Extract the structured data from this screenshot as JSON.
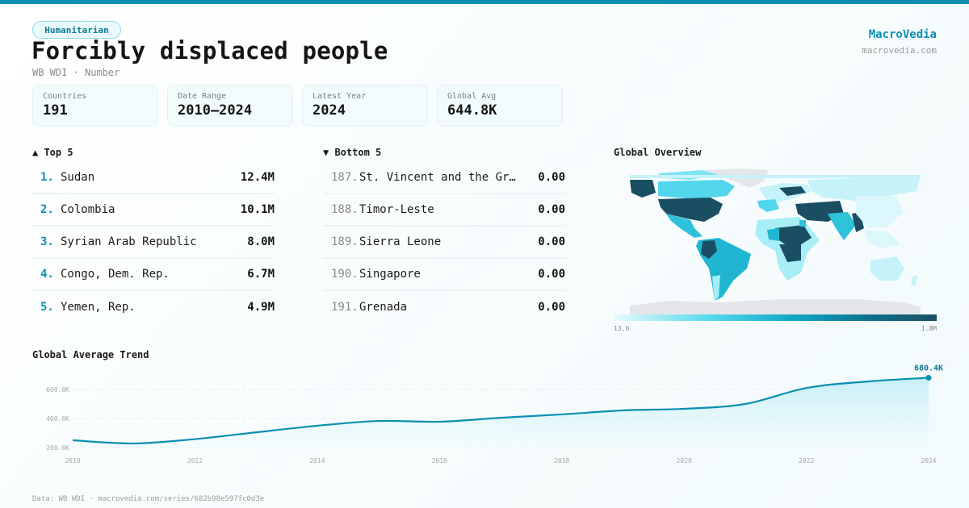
{
  "header": {
    "category_badge": "Humanitarian",
    "title": "Forcibly displaced people",
    "subtitle": "WB WDI · Number",
    "brand": "MacroVedia",
    "brand_url": "macrovedia.com",
    "accent_color": "#0b8fb0"
  },
  "stats": [
    {
      "label": "Countries",
      "value": "191"
    },
    {
      "label": "Date Range",
      "value": "2010–2024"
    },
    {
      "label": "Latest Year",
      "value": "2024"
    },
    {
      "label": "Global Avg",
      "value": "644.8K"
    }
  ],
  "top5": {
    "title": "▲ Top 5",
    "items": [
      {
        "rank": "1.",
        "name": "Sudan",
        "value": "12.4M"
      },
      {
        "rank": "2.",
        "name": "Colombia",
        "value": "10.1M"
      },
      {
        "rank": "3.",
        "name": "Syrian Arab Republic",
        "value": "8.0M"
      },
      {
        "rank": "4.",
        "name": "Congo, Dem. Rep.",
        "value": "6.7M"
      },
      {
        "rank": "5.",
        "name": "Yemen, Rep.",
        "value": "4.9M"
      }
    ]
  },
  "bottom5": {
    "title": "▼ Bottom 5",
    "items": [
      {
        "rank": "187.",
        "name": "St. Vincent and the Gr…",
        "value": "0.00"
      },
      {
        "rank": "188.",
        "name": "Timor-Leste",
        "value": "0.00"
      },
      {
        "rank": "189.",
        "name": "Sierra Leone",
        "value": "0.00"
      },
      {
        "rank": "190.",
        "name": "Singapore",
        "value": "0.00"
      },
      {
        "rank": "191.",
        "name": "Grenada",
        "value": "0.00"
      }
    ]
  },
  "map": {
    "title": "Global Overview",
    "legend_min": "13.0",
    "legend_max": "1.8M",
    "scale_colors": [
      "#e8fbfd",
      "#55d8ec",
      "#12a7c7",
      "#0e6f8c",
      "#1a4f63"
    ]
  },
  "trend": {
    "title": "Global Average Trend",
    "last_label": "680.4K"
  },
  "footer": {
    "source": "Data: WB WDI · macrovedia.com/series/682b98e597fc0d3e"
  },
  "chart_data": {
    "type": "area",
    "title": "Global Average Trend",
    "xlabel": "",
    "ylabel": "",
    "x": [
      2010,
      2011,
      2012,
      2013,
      2014,
      2015,
      2016,
      2017,
      2018,
      2019,
      2020,
      2021,
      2022,
      2023,
      2024
    ],
    "series": [
      {
        "name": "Global average",
        "values": [
          250000,
          228000,
          258000,
          305000,
          350000,
          383000,
          378000,
          405000,
          428000,
          456000,
          467000,
          500000,
          610000,
          655000,
          680400
        ]
      }
    ],
    "x_ticks": [
      "2010",
      "2012",
      "2014",
      "2016",
      "2018",
      "2020",
      "2022",
      "2024"
    ],
    "y_ticks": [
      "200.0K",
      "400.0K",
      "600.0K"
    ],
    "ylim": [
      150000,
      700000
    ],
    "grid": true,
    "annotations": [
      {
        "x": 2024,
        "label": "680.4K"
      }
    ]
  }
}
